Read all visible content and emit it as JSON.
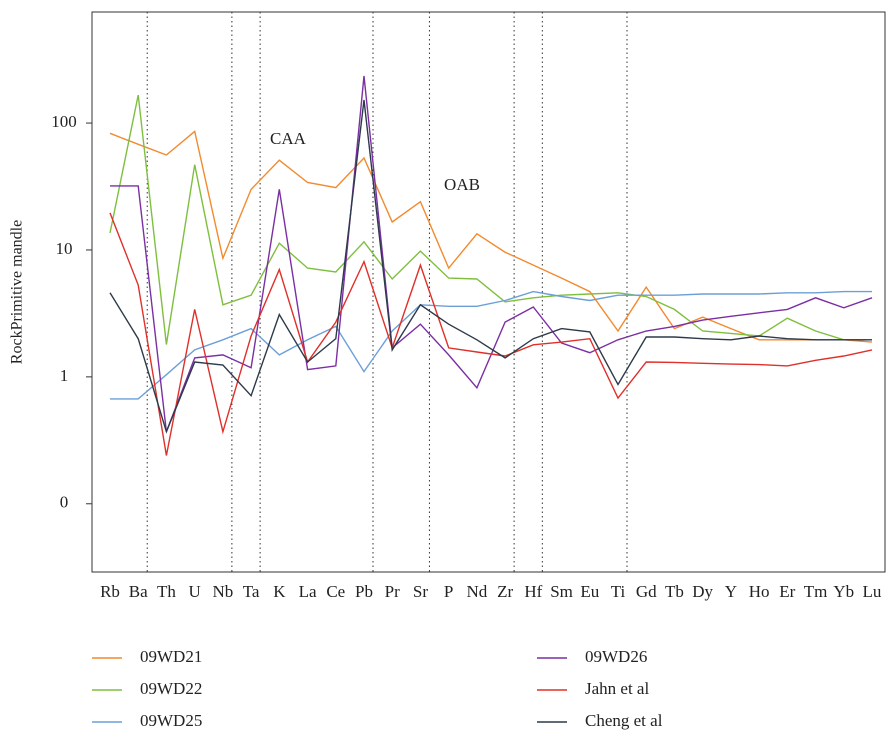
{
  "chart_data": {
    "type": "line",
    "log_scale": true,
    "ylabel": "RockPrimitive mandle",
    "annotations": [
      "CAA",
      "OAB"
    ],
    "categories": [
      "Rb",
      "Ba",
      "Th",
      "U",
      "Nb",
      "Ta",
      "K",
      "La",
      "Ce",
      "Pb",
      "Pr",
      "Sr",
      "P",
      "Nd",
      "Zr",
      "Hf",
      "Sm",
      "Eu",
      "Ti",
      "Gd",
      "Tb",
      "Dy",
      "Y",
      "Ho",
      "Er",
      "Tm",
      "Yb",
      "Lu"
    ],
    "ylim": [
      0.029,
      750
    ],
    "yticks": [
      100,
      10,
      1,
      {
        "value": 0.1,
        "label": "0"
      }
    ],
    "series": [
      {
        "name": "09WD21",
        "color": "#f28a2e",
        "values": [
          83,
          68,
          56,
          86,
          8.6,
          30,
          51,
          34,
          31,
          53,
          16.6,
          24,
          7.2,
          13.4,
          9.6,
          7.6,
          6.0,
          4.7,
          2.3,
          5.1,
          2.4,
          2.96,
          2.4,
          1.96,
          1.96,
          1.96,
          1.96,
          1.88
        ]
      },
      {
        "name": "09WD22",
        "color": "#7fbf3f",
        "values": [
          13.6,
          166,
          1.8,
          47,
          3.7,
          4.4,
          11.3,
          7.2,
          6.7,
          11.6,
          5.9,
          9.8,
          6.0,
          5.9,
          3.9,
          4.2,
          4.4,
          4.5,
          4.6,
          4.3,
          3.4,
          2.3,
          2.2,
          2.1,
          2.9,
          2.3,
          1.96,
          1.96
        ]
      },
      {
        "name": "09WD25",
        "color": "#6c9fd8",
        "values": [
          0.67,
          0.67,
          1.04,
          1.63,
          1.96,
          2.4,
          1.49,
          1.96,
          2.5,
          1.1,
          2.3,
          3.7,
          3.6,
          3.6,
          4.0,
          4.7,
          4.3,
          4.0,
          4.4,
          4.4,
          4.4,
          4.5,
          4.5,
          4.5,
          4.6,
          4.6,
          4.7,
          4.7
        ]
      },
      {
        "name": "09WD26",
        "color": "#7b2fa3",
        "values": [
          32,
          32,
          0.37,
          1.41,
          1.49,
          1.18,
          30,
          1.14,
          1.22,
          235,
          1.69,
          2.6,
          1.49,
          0.82,
          2.7,
          3.55,
          1.85,
          1.55,
          1.96,
          2.3,
          2.5,
          2.8,
          3.0,
          3.2,
          3.4,
          4.2,
          3.5,
          4.2
        ]
      },
      {
        "name": "Jahn et al",
        "color": "#e0302a",
        "values": [
          19.6,
          5.3,
          0.24,
          3.4,
          0.37,
          2.1,
          7.0,
          1.31,
          2.7,
          8.1,
          1.69,
          7.6,
          1.69,
          1.57,
          1.46,
          1.79,
          1.88,
          2.0,
          0.68,
          1.31,
          1.3,
          1.28,
          1.26,
          1.25,
          1.22,
          1.35,
          1.46,
          1.63
        ]
      },
      {
        "name": "Cheng et al",
        "color": "#2d3a4a",
        "values": [
          4.6,
          2.0,
          0.37,
          1.31,
          1.24,
          0.71,
          3.1,
          1.31,
          2.0,
          152,
          1.63,
          3.7,
          2.6,
          1.96,
          1.41,
          2.0,
          2.4,
          2.26,
          0.87,
          2.06,
          2.06,
          2.0,
          1.96,
          2.1,
          2.0,
          1.96,
          1.96,
          1.96
        ]
      }
    ]
  }
}
